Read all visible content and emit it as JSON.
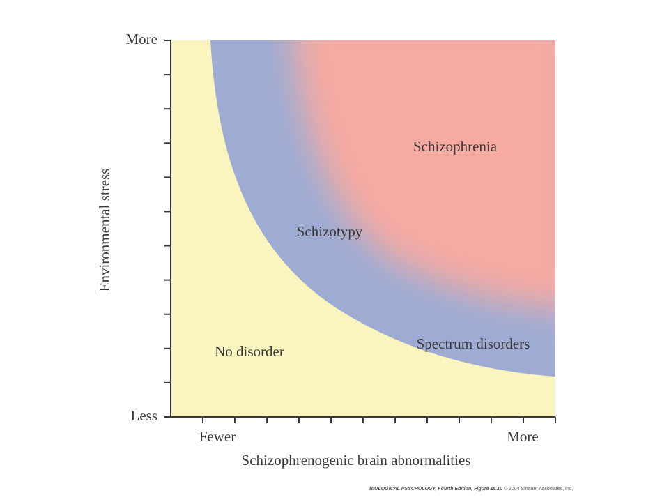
{
  "colors": {
    "no_disorder": "#faf5be",
    "spectrum": "#9eacd4",
    "schizophrenia": "#f6aaa2",
    "axis": "#3a3a3a"
  },
  "axes": {
    "y_label": "Environmental stress",
    "y_top": "More",
    "y_bottom": "Less",
    "x_label": "Schizophrenogenic brain abnormalities",
    "x_left": "Fewer",
    "x_right": "More",
    "y_tick_count": 12,
    "x_tick_count": 12
  },
  "regions": {
    "schizophrenia": "Schizophrenia",
    "schizotypy": "Schizotypy",
    "spectrum_disorders": "Spectrum disorders",
    "no_disorder": "No disorder"
  },
  "credit": {
    "source": "BIOLOGICAL PSYCHOLOGY, Fourth Edition, Figure 16.10",
    "copyright": "© 2004 Sinauer Associates, Inc."
  }
}
